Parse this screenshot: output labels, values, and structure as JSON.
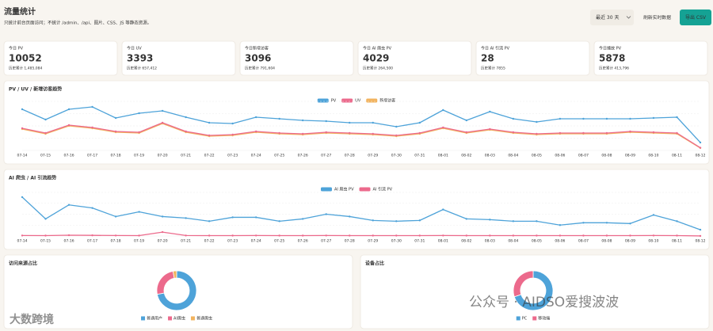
{
  "header": {
    "title": "流量统计",
    "subtitle": "只统计前台页面访问；不统计 /admin、/api、图片、CSS、JS 等静态资源。"
  },
  "controls": {
    "range": "最近 30 天",
    "refresh": "刷新实时数据",
    "export": "导出 CSV"
  },
  "stats": [
    {
      "label": "今日 PV",
      "value": "10052",
      "total": "历史累计 1,485,084"
    },
    {
      "label": "今日 UV",
      "value": "3393",
      "total": "历史累计 657,412"
    },
    {
      "label": "今日新增访客",
      "value": "3096",
      "total": "历史累计 791,604"
    },
    {
      "label": "今日 AI 爬虫 PV",
      "value": "4029",
      "total": "历史累计 264,500"
    },
    {
      "label": "今日 AI 引流 PV",
      "value": "28",
      "total": "历史累计 7855"
    },
    {
      "label": "今日播放 PV",
      "value": "5878",
      "total": "历史累计 413,796"
    }
  ],
  "chart_data": [
    {
      "type": "line",
      "title": "PV / UV / 新增访客趋势",
      "categories": [
        "07-14",
        "07-15",
        "07-16",
        "07-17",
        "07-18",
        "07-19",
        "07-20",
        "07-21",
        "07-22",
        "07-23",
        "07-24",
        "07-25",
        "07-26",
        "07-27",
        "07-28",
        "07-29",
        "07-30",
        "07-31",
        "08-01",
        "08-02",
        "08-03",
        "08-04",
        "08-05",
        "08-06",
        "08-07",
        "08-08",
        "08-09",
        "08-10",
        "08-11",
        "08-12"
      ],
      "ylim": [
        0,
        62000
      ],
      "series": [
        {
          "name": "PV",
          "color": "#4ea3d9",
          "values": [
            52000,
            39000,
            52000,
            55000,
            41000,
            47000,
            50000,
            42000,
            35000,
            34000,
            42000,
            40000,
            38000,
            37000,
            35000,
            35000,
            30000,
            35000,
            51000,
            38000,
            49000,
            40000,
            36000,
            40000,
            40000,
            40000,
            40000,
            41000,
            42000,
            10052
          ]
        },
        {
          "name": "UV",
          "color": "#ec6a8c",
          "values": [
            28000,
            22000,
            32000,
            29000,
            24000,
            23000,
            35000,
            24000,
            19000,
            20000,
            24000,
            22000,
            21000,
            23000,
            22000,
            21000,
            19000,
            22000,
            29000,
            23000,
            27000,
            23000,
            21000,
            22000,
            22000,
            22000,
            24000,
            23000,
            22000,
            3393
          ]
        },
        {
          "name": "新增访客",
          "color": "#f2b35e",
          "values": [
            27000,
            21000,
            31000,
            28000,
            23000,
            22000,
            34000,
            23000,
            18000,
            19000,
            23000,
            21000,
            20000,
            22000,
            21000,
            20000,
            18000,
            21000,
            28000,
            22000,
            26000,
            22000,
            20000,
            21000,
            21000,
            21000,
            23000,
            22000,
            21000,
            3096
          ]
        }
      ]
    },
    {
      "type": "line",
      "title": "AI 爬虫 / AI 引流趋势",
      "categories": [
        "07-14",
        "07-15",
        "07-16",
        "07-17",
        "07-18",
        "07-19",
        "07-20",
        "07-21",
        "07-22",
        "07-23",
        "07-24",
        "07-25",
        "07-26",
        "07-27",
        "07-28",
        "07-29",
        "07-30",
        "07-31",
        "08-01",
        "08-02",
        "08-03",
        "08-04",
        "08-05",
        "08-06",
        "08-07",
        "08-08",
        "08-09",
        "08-10",
        "08-11",
        "08-12"
      ],
      "ylim": [
        0,
        28000
      ],
      "series": [
        {
          "name": "AI 爬虫 PV",
          "color": "#4ea3d9",
          "values": [
            25000,
            11000,
            20000,
            18000,
            12500,
            15500,
            12500,
            11500,
            9500,
            12000,
            12000,
            9500,
            11000,
            14000,
            12500,
            10000,
            9500,
            10000,
            17000,
            11000,
            10500,
            9500,
            9500,
            7000,
            8500,
            8500,
            8000,
            13500,
            9500,
            4029
          ]
        },
        {
          "name": "AI 引流 PV",
          "color": "#ec6a8c",
          "values": [
            300,
            250,
            500,
            400,
            300,
            250,
            2500,
            300,
            250,
            250,
            300,
            250,
            250,
            300,
            250,
            250,
            250,
            250,
            300,
            250,
            250,
            250,
            250,
            250,
            250,
            250,
            250,
            300,
            250,
            28
          ]
        }
      ]
    },
    {
      "type": "pie",
      "title": "访问来源占比",
      "categories": [
        "普通用户",
        "AI爬虫",
        "普通爬虫"
      ],
      "values": [
        72,
        25,
        3
      ],
      "colors": [
        "#4ea3d9",
        "#ec6a8c",
        "#f2b35e"
      ]
    },
    {
      "type": "pie",
      "title": "设备占比",
      "categories": [
        "PC",
        "移动端"
      ],
      "values": [
        70,
        30
      ],
      "colors": [
        "#4ea3d9",
        "#ec6a8c"
      ]
    }
  ],
  "watermarks": [
    "大数跨境",
    "公众号 · AIDSO爱搜波波"
  ]
}
